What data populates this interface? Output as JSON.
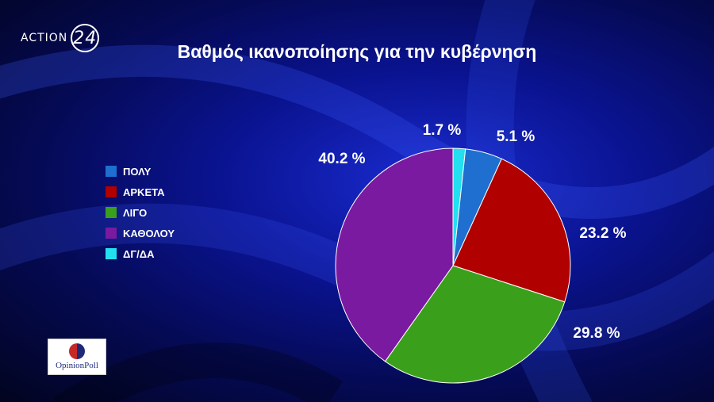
{
  "broadcaster": {
    "name": "ACTION",
    "number": "24"
  },
  "pollster": "OpinionPoll",
  "colors": {
    "ΠΟΛΥ": "#1e6fd0",
    "ΑΡΚΕΤΑ": "#b00000",
    "ΛΙΓΟ": "#3aa01c",
    "ΚΑΘΟΛΟΥ": "#7a1aa0",
    "ΔΓ/ΔΑ": "#22e0f0"
  },
  "chart_data": {
    "type": "pie",
    "title": "Βαθμός ικανοποίησης για την κυβέρνηση",
    "categories": [
      "ΠΟΛΥ",
      "ΑΡΚΕΤΑ",
      "ΛΙΓΟ",
      "ΚΑΘΟΛΟΥ",
      "ΔΓ/ΔΑ"
    ],
    "values": [
      5.1,
      23.2,
      29.8,
      40.2,
      1.7
    ],
    "labels": [
      "5.1 %",
      "23.2 %",
      "29.8 %",
      "40.2 %",
      "1.7 %"
    ],
    "legend_placement": "left"
  }
}
